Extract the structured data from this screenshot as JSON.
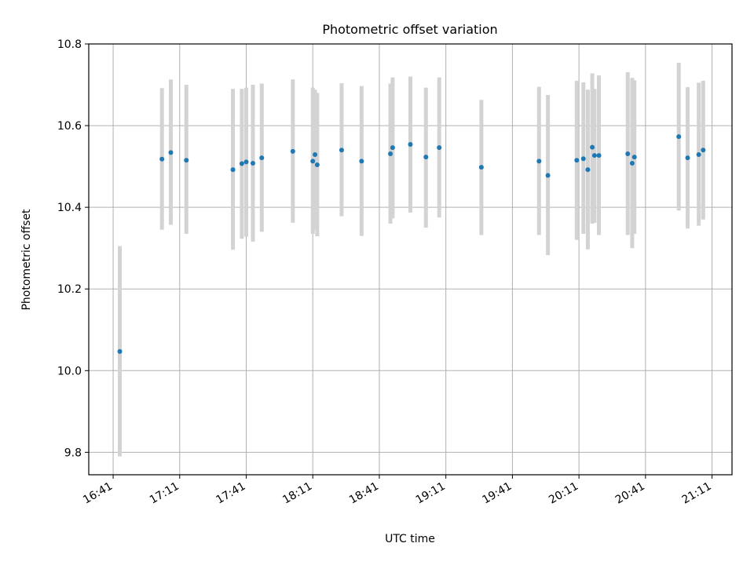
{
  "chart_data": {
    "type": "scatter",
    "title": "Photometric offset variation",
    "xlabel": "UTC time",
    "ylabel": "Photometric offset",
    "x_tick_labels": [
      "16:41",
      "17:11",
      "17:41",
      "18:11",
      "18:41",
      "19:11",
      "19:41",
      "20:11",
      "20:41",
      "21:11"
    ],
    "y_ticks": [
      9.8,
      10.0,
      10.2,
      10.4,
      10.6,
      10.8
    ],
    "y_tick_labels": [
      "9.8",
      "10.0",
      "10.2",
      "10.4",
      "10.6",
      "10.8"
    ],
    "xlim": [
      "16:30",
      "21:20"
    ],
    "ylim": [
      9.745,
      10.8
    ],
    "grid": true,
    "colors": {
      "point": "#1f77b4",
      "errorbar": "#d3d3d3",
      "grid": "#b0b0b0"
    },
    "points": [
      {
        "x": "16:44",
        "y": 10.047,
        "ylow": 9.79,
        "yhigh": 10.305
      },
      {
        "x": "17:03",
        "y": 10.518,
        "ylow": 10.345,
        "yhigh": 10.692
      },
      {
        "x": "17:07",
        "y": 10.534,
        "ylow": 10.357,
        "yhigh": 10.713
      },
      {
        "x": "17:14",
        "y": 10.515,
        "ylow": 10.335,
        "yhigh": 10.7
      },
      {
        "x": "17:35",
        "y": 10.492,
        "ylow": 10.296,
        "yhigh": 10.69
      },
      {
        "x": "17:39",
        "y": 10.507,
        "ylow": 10.323,
        "yhigh": 10.69
      },
      {
        "x": "17:41",
        "y": 10.511,
        "ylow": 10.328,
        "yhigh": 10.693
      },
      {
        "x": "17:44",
        "y": 10.508,
        "ylow": 10.316,
        "yhigh": 10.7
      },
      {
        "x": "17:48",
        "y": 10.521,
        "ylow": 10.34,
        "yhigh": 10.703
      },
      {
        "x": "18:02",
        "y": 10.537,
        "ylow": 10.362,
        "yhigh": 10.713
      },
      {
        "x": "18:11",
        "y": 10.513,
        "ylow": 10.335,
        "yhigh": 10.693
      },
      {
        "x": "18:12",
        "y": 10.529,
        "ylow": 10.345,
        "yhigh": 10.688
      },
      {
        "x": "18:13",
        "y": 10.504,
        "ylow": 10.329,
        "yhigh": 10.68
      },
      {
        "x": "18:24",
        "y": 10.54,
        "ylow": 10.378,
        "yhigh": 10.704
      },
      {
        "x": "18:33",
        "y": 10.513,
        "ylow": 10.33,
        "yhigh": 10.697
      },
      {
        "x": "18:46",
        "y": 10.531,
        "ylow": 10.36,
        "yhigh": 10.703
      },
      {
        "x": "18:47",
        "y": 10.546,
        "ylow": 10.373,
        "yhigh": 10.718
      },
      {
        "x": "18:55",
        "y": 10.554,
        "ylow": 10.387,
        "yhigh": 10.72
      },
      {
        "x": "19:02",
        "y": 10.523,
        "ylow": 10.35,
        "yhigh": 10.693
      },
      {
        "x": "19:08",
        "y": 10.546,
        "ylow": 10.375,
        "yhigh": 10.718
      },
      {
        "x": "19:27",
        "y": 10.498,
        "ylow": 10.332,
        "yhigh": 10.663
      },
      {
        "x": "19:53",
        "y": 10.513,
        "ylow": 10.332,
        "yhigh": 10.695
      },
      {
        "x": "19:57",
        "y": 10.478,
        "ylow": 10.283,
        "yhigh": 10.675
      },
      {
        "x": "20:10",
        "y": 10.515,
        "ylow": 10.32,
        "yhigh": 10.71
      },
      {
        "x": "20:13",
        "y": 10.519,
        "ylow": 10.335,
        "yhigh": 10.706
      },
      {
        "x": "20:15",
        "y": 10.492,
        "ylow": 10.297,
        "yhigh": 10.688
      },
      {
        "x": "20:17",
        "y": 10.547,
        "ylow": 10.36,
        "yhigh": 10.728
      },
      {
        "x": "20:18",
        "y": 10.527,
        "ylow": 10.362,
        "yhigh": 10.69
      },
      {
        "x": "20:20",
        "y": 10.527,
        "ylow": 10.332,
        "yhigh": 10.723
      },
      {
        "x": "20:33",
        "y": 10.531,
        "ylow": 10.332,
        "yhigh": 10.731
      },
      {
        "x": "20:35",
        "y": 10.508,
        "ylow": 10.3,
        "yhigh": 10.717
      },
      {
        "x": "20:36",
        "y": 10.523,
        "ylow": 10.335,
        "yhigh": 10.711
      },
      {
        "x": "20:56",
        "y": 10.573,
        "ylow": 10.392,
        "yhigh": 10.754
      },
      {
        "x": "21:00",
        "y": 10.521,
        "ylow": 10.348,
        "yhigh": 10.694
      },
      {
        "x": "21:05",
        "y": 10.529,
        "ylow": 10.355,
        "yhigh": 10.705
      },
      {
        "x": "21:07",
        "y": 10.54,
        "ylow": 10.37,
        "yhigh": 10.71
      }
    ]
  }
}
